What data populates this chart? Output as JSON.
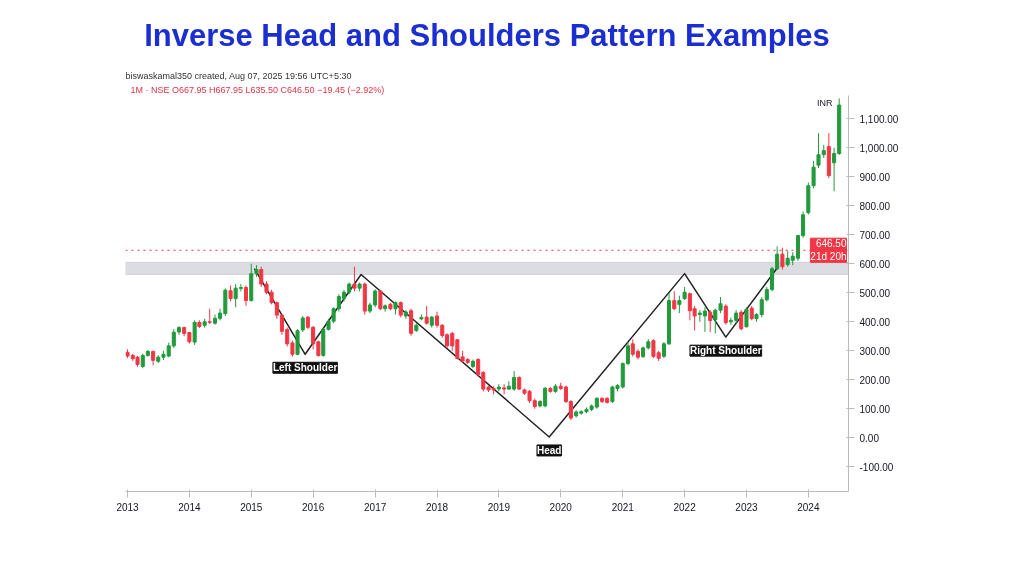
{
  "chart_data": {
    "type": "candlestick",
    "title": "Inverse Head and Shoulders Pattern Examples",
    "subtitle": "biswaskamal350 created, Aug 07, 2025 19:56 UTC+5:30",
    "ylabel": "INR",
    "annotations": [
      "1M · NSE  O667.95  H667.95  L635.50  C646.50  −19.45 (−2.92%)",
      {
        "text": "Left Shoulder",
        "x": "2015-11-15",
        "y": 288
      },
      {
        "text": "Head",
        "x": "2019-10-25",
        "y": 3
      },
      {
        "text": "Right Shoulder",
        "x": "2022-09-01",
        "y": 347
      }
    ],
    "x": [
      "2013-01",
      "2013-02",
      "2013-03",
      "2013-04",
      "2013-05",
      "2013-06",
      "2013-07",
      "2013-08",
      "2013-09",
      "2013-10",
      "2013-11",
      "2013-12",
      "2014-01",
      "2014-02",
      "2014-03",
      "2014-04",
      "2014-05",
      "2014-06",
      "2014-07",
      "2014-08",
      "2014-09",
      "2014-10",
      "2014-11",
      "2014-12",
      "2015-01",
      "2015-02",
      "2015-03",
      "2015-04",
      "2015-05",
      "2015-06",
      "2015-07",
      "2015-08",
      "2015-09",
      "2015-10",
      "2015-11",
      "2015-12",
      "2016-01",
      "2016-02",
      "2016-03",
      "2016-04",
      "2016-05",
      "2016-06",
      "2016-07",
      "2016-08",
      "2016-09",
      "2016-10",
      "2016-11",
      "2016-12",
      "2017-01",
      "2017-02",
      "2017-03",
      "2017-04",
      "2017-05",
      "2017-06",
      "2017-07",
      "2017-08",
      "2017-09",
      "2017-10",
      "2017-11",
      "2017-12",
      "2018-01",
      "2018-02",
      "2018-03",
      "2018-04",
      "2018-05",
      "2018-06",
      "2018-07",
      "2018-08",
      "2018-09",
      "2018-10",
      "2018-11",
      "2018-12",
      "2019-01",
      "2019-02",
      "2019-03",
      "2019-04",
      "2019-05",
      "2019-06",
      "2019-07",
      "2019-08",
      "2019-09",
      "2019-10",
      "2019-11",
      "2019-12",
      "2020-01",
      "2020-02",
      "2020-03",
      "2020-04",
      "2020-05",
      "2020-06",
      "2020-07",
      "2020-08",
      "2020-09",
      "2020-10",
      "2020-11",
      "2020-12",
      "2021-01",
      "2021-02",
      "2021-03",
      "2021-04",
      "2021-05",
      "2021-06",
      "2021-07",
      "2021-08",
      "2021-09",
      "2021-10",
      "2021-11",
      "2021-12",
      "2022-01",
      "2022-02",
      "2022-03",
      "2022-04",
      "2022-05",
      "2022-06",
      "2022-07",
      "2022-08",
      "2022-09",
      "2022-10",
      "2022-11",
      "2022-12",
      "2023-01",
      "2023-02",
      "2023-03",
      "2023-04",
      "2023-05",
      "2023-06",
      "2023-07",
      "2023-08",
      "2023-09",
      "2023-10",
      "2023-11",
      "2023-12",
      "2024-01",
      "2024-02",
      "2024-03",
      "2024-04",
      "2024-05",
      "2024-06",
      "2024-07"
    ],
    "ohlc": [
      [
        295,
        305,
        275,
        282
      ],
      [
        284,
        290,
        265,
        273
      ],
      [
        278,
        282,
        245,
        253
      ],
      [
        246,
        290,
        240,
        284
      ],
      [
        284,
        303,
        280,
        298
      ],
      [
        298,
        300,
        250,
        267
      ],
      [
        264,
        285,
        258,
        278
      ],
      [
        278,
        300,
        268,
        288
      ],
      [
        282,
        328,
        278,
        317
      ],
      [
        317,
        375,
        310,
        364
      ],
      [
        365,
        385,
        355,
        380
      ],
      [
        380,
        383,
        350,
        360
      ],
      [
        363,
        365,
        325,
        331
      ],
      [
        330,
        405,
        320,
        398
      ],
      [
        398,
        405,
        378,
        384
      ],
      [
        388,
        410,
        380,
        400
      ],
      [
        400,
        445,
        392,
        398
      ],
      [
        395,
        425,
        390,
        412
      ],
      [
        412,
        445,
        405,
        430
      ],
      [
        428,
        515,
        420,
        509
      ],
      [
        507,
        525,
        470,
        480
      ],
      [
        480,
        530,
        450,
        516
      ],
      [
        515,
        530,
        505,
        518
      ],
      [
        518,
        525,
        455,
        473
      ],
      [
        473,
        600,
        470,
        566
      ],
      [
        566,
        595,
        555,
        580
      ],
      [
        580,
        590,
        520,
        530
      ],
      [
        530,
        540,
        495,
        502
      ],
      [
        502,
        510,
        460,
        466
      ],
      [
        466,
        470,
        410,
        423
      ],
      [
        423,
        425,
        355,
        367
      ],
      [
        373,
        380,
        315,
        324
      ],
      [
        327,
        335,
        280,
        288
      ],
      [
        288,
        375,
        285,
        369
      ],
      [
        372,
        420,
        365,
        413
      ],
      [
        416,
        420,
        375,
        381
      ],
      [
        381,
        385,
        305,
        324
      ],
      [
        331,
        335,
        280,
        284
      ],
      [
        284,
        380,
        280,
        374
      ],
      [
        374,
        410,
        370,
        402
      ],
      [
        402,
        450,
        395,
        445
      ],
      [
        445,
        495,
        435,
        487
      ],
      [
        480,
        510,
        470,
        502
      ],
      [
        502,
        535,
        495,
        530
      ],
      [
        530,
        590,
        505,
        516
      ],
      [
        516,
        535,
        505,
        530
      ],
      [
        530,
        535,
        425,
        437
      ],
      [
        437,
        465,
        430,
        458
      ],
      [
        458,
        512,
        450,
        506
      ],
      [
        506,
        510,
        440,
        445
      ],
      [
        445,
        460,
        435,
        455
      ],
      [
        460,
        465,
        440,
        445
      ],
      [
        445,
        470,
        425,
        466
      ],
      [
        466,
        470,
        415,
        423
      ],
      [
        420,
        440,
        410,
        434
      ],
      [
        438,
        445,
        352,
        360
      ],
      [
        370,
        395,
        365,
        388
      ],
      [
        410,
        425,
        405,
        415
      ],
      [
        416,
        455,
        390,
        395
      ],
      [
        388,
        420,
        380,
        416
      ],
      [
        420,
        435,
        380,
        388
      ],
      [
        388,
        392,
        345,
        353
      ],
      [
        355,
        360,
        310,
        317
      ],
      [
        360,
        365,
        300,
        317
      ],
      [
        338,
        340,
        270,
        274
      ],
      [
        279,
        300,
        260,
        265
      ],
      [
        270,
        275,
        255,
        260
      ],
      [
        246,
        270,
        240,
        264
      ],
      [
        270,
        275,
        214,
        218
      ],
      [
        225,
        230,
        160,
        168
      ],
      [
        175,
        180,
        158,
        165
      ],
      [
        170,
        178,
        150,
        165
      ],
      [
        168,
        185,
        160,
        175
      ],
      [
        172,
        185,
        150,
        168
      ],
      [
        168,
        195,
        165,
        178
      ],
      [
        168,
        230,
        162,
        208
      ],
      [
        208,
        212,
        165,
        168
      ],
      [
        165,
        170,
        148,
        154
      ],
      [
        160,
        165,
        120,
        128
      ],
      [
        128,
        135,
        100,
        108
      ],
      [
        110,
        130,
        105,
        125
      ],
      [
        110,
        175,
        105,
        171
      ],
      [
        170,
        175,
        155,
        160
      ],
      [
        160,
        185,
        155,
        178
      ],
      [
        178,
        190,
        165,
        170
      ],
      [
        175,
        180,
        120,
        125
      ],
      [
        125,
        130,
        62,
        68
      ],
      [
        76,
        95,
        70,
        89
      ],
      [
        85,
        95,
        80,
        90
      ],
      [
        90,
        105,
        85,
        98
      ],
      [
        98,
        115,
        92,
        110
      ],
      [
        106,
        140,
        100,
        136
      ],
      [
        136,
        140,
        120,
        125
      ],
      [
        136,
        140,
        118,
        122
      ],
      [
        125,
        180,
        120,
        175
      ],
      [
        170,
        185,
        160,
        180
      ],
      [
        175,
        260,
        170,
        256
      ],
      [
        256,
        330,
        250,
        317
      ],
      [
        324,
        340,
        280,
        288
      ],
      [
        298,
        305,
        270,
        278
      ],
      [
        280,
        315,
        275,
        310
      ],
      [
        310,
        340,
        305,
        331
      ],
      [
        335,
        340,
        275,
        281
      ],
      [
        293,
        300,
        265,
        274
      ],
      [
        281,
        330,
        275,
        324
      ],
      [
        324,
        500,
        320,
        473
      ],
      [
        473,
        505,
        440,
        445
      ],
      [
        460,
        490,
        430,
        473
      ],
      [
        480,
        520,
        475,
        502
      ],
      [
        497,
        500,
        405,
        438
      ],
      [
        445,
        455,
        370,
        420
      ],
      [
        425,
        440,
        400,
        430
      ],
      [
        420,
        450,
        365,
        437
      ],
      [
        433,
        440,
        365,
        404
      ],
      [
        407,
        445,
        360,
        440
      ],
      [
        440,
        485,
        430,
        462
      ],
      [
        454,
        460,
        390,
        397
      ],
      [
        400,
        415,
        390,
        405
      ],
      [
        405,
        440,
        395,
        430
      ],
      [
        433,
        440,
        370,
        376
      ],
      [
        383,
        450,
        380,
        443
      ],
      [
        447,
        455,
        405,
        411
      ],
      [
        411,
        430,
        400,
        425
      ],
      [
        425,
        485,
        415,
        476
      ],
      [
        476,
        520,
        470,
        511
      ],
      [
        511,
        590,
        505,
        583
      ],
      [
        583,
        660,
        578,
        633
      ],
      [
        633,
        655,
        580,
        590
      ],
      [
        597,
        645,
        590,
        619
      ],
      [
        612,
        640,
        595,
        626
      ],
      [
        619,
        700,
        610,
        697
      ],
      [
        697,
        780,
        690,
        769
      ],
      [
        776,
        880,
        770,
        869
      ],
      [
        869,
        955,
        860,
        933
      ],
      [
        940,
        1050,
        930,
        976
      ],
      [
        976,
        1010,
        965,
        990
      ],
      [
        1004,
        1050,
        895,
        904
      ],
      [
        948,
        1000,
        850,
        980
      ],
      [
        980,
        1170,
        975,
        1147
      ]
    ],
    "colors": [
      "#f23645",
      "#f23645",
      "#f23645",
      "#229a3c",
      "#229a3c",
      "#f23645",
      "#229a3c",
      "#229a3c",
      "#229a3c",
      "#229a3c",
      "#229a3c",
      "#f23645",
      "#f23645",
      "#229a3c",
      "#f23645",
      "#229a3c",
      "#f23645",
      "#229a3c",
      "#229a3c",
      "#229a3c",
      "#f23645",
      "#229a3c",
      "#229a3c",
      "#f23645",
      "#229a3c",
      "#229a3c",
      "#f23645",
      "#f23645",
      "#f23645",
      "#f23645",
      "#f23645",
      "#f23645",
      "#f23645",
      "#229a3c",
      "#229a3c",
      "#f23645",
      "#f23645",
      "#f23645",
      "#229a3c",
      "#229a3c",
      "#229a3c",
      "#229a3c",
      "#229a3c",
      "#229a3c",
      "#f23645",
      "#229a3c",
      "#f23645",
      "#229a3c",
      "#229a3c",
      "#f23645",
      "#229a3c",
      "#f23645",
      "#229a3c",
      "#f23645",
      "#229a3c",
      "#f23645",
      "#229a3c",
      "#229a3c",
      "#f23645",
      "#229a3c",
      "#f23645",
      "#f23645",
      "#f23645",
      "#f23645",
      "#f23645",
      "#f23645",
      "#f23645",
      "#229a3c",
      "#f23645",
      "#f23645",
      "#f23645",
      "#f23645",
      "#229a3c",
      "#f23645",
      "#229a3c",
      "#229a3c",
      "#f23645",
      "#f23645",
      "#f23645",
      "#f23645",
      "#229a3c",
      "#229a3c",
      "#f23645",
      "#229a3c",
      "#f23645",
      "#f23645",
      "#f23645",
      "#229a3c",
      "#229a3c",
      "#229a3c",
      "#229a3c",
      "#229a3c",
      "#f23645",
      "#f23645",
      "#229a3c",
      "#229a3c",
      "#229a3c",
      "#229a3c",
      "#f23645",
      "#f23645",
      "#229a3c",
      "#229a3c",
      "#f23645",
      "#f23645",
      "#229a3c",
      "#229a3c",
      "#f23645",
      "#229a3c",
      "#229a3c",
      "#f23645",
      "#f23645",
      "#229a3c",
      "#229a3c",
      "#f23645",
      "#229a3c",
      "#229a3c",
      "#f23645",
      "#229a3c",
      "#229a3c",
      "#f23645",
      "#229a3c",
      "#f23645",
      "#229a3c",
      "#229a3c",
      "#229a3c",
      "#229a3c",
      "#229a3c",
      "#f23645",
      "#229a3c",
      "#229a3c",
      "#229a3c",
      "#229a3c",
      "#229a3c",
      "#229a3c",
      "#229a3c",
      "#229a3c",
      "#f23645",
      "#229a3c",
      "#229a3c"
    ],
    "series": [
      {
        "type": "line",
        "color": "#222222",
        "x": [
          "2015-01-20",
          "2015-11-15",
          "2016-10-10",
          "2019-10-25",
          "2022-01-01",
          "2022-09-01",
          "2023-06-28"
        ],
        "values": [
          583,
          288,
          563,
          3,
          566,
          347,
          583
        ]
      }
    ],
    "bands": [
      {
        "axis": "y",
        "from": 563,
        "to": 605,
        "color": "#dcdde3"
      }
    ],
    "ref_lines": [
      {
        "axis": "y",
        "value": 646.5,
        "label": "646.50\n21d 20h",
        "color": "#f23645",
        "line_style": "dotted"
      }
    ],
    "xlim": [
      "2012-12-20",
      "2024-08-25"
    ],
    "xticks": [
      "2013",
      "2014",
      "2015",
      "2016",
      "2017",
      "2018",
      "2019",
      "2020",
      "2021",
      "2022",
      "2023",
      "2024"
    ],
    "ylim": [
      -185,
      1180
    ],
    "yticks": [
      {
        "value": -100,
        "label": "-100.00"
      },
      {
        "value": 0,
        "label": "0.00"
      },
      {
        "value": 100,
        "label": "100.00"
      },
      {
        "value": 200,
        "label": "200.00"
      },
      {
        "value": 300,
        "label": "300.00"
      },
      {
        "value": 400,
        "label": "400.00"
      },
      {
        "value": 500,
        "label": "500.00"
      },
      {
        "value": 600,
        "label": "600.00"
      },
      {
        "value": 700,
        "label": "700.00"
      },
      {
        "value": 800,
        "label": "800.00"
      },
      {
        "value": 900,
        "label": "900.00"
      },
      {
        "value": 1000,
        "label": "1,000.00"
      },
      {
        "value": 1100,
        "label": "1,100.00"
      }
    ],
    "grid": false
  }
}
